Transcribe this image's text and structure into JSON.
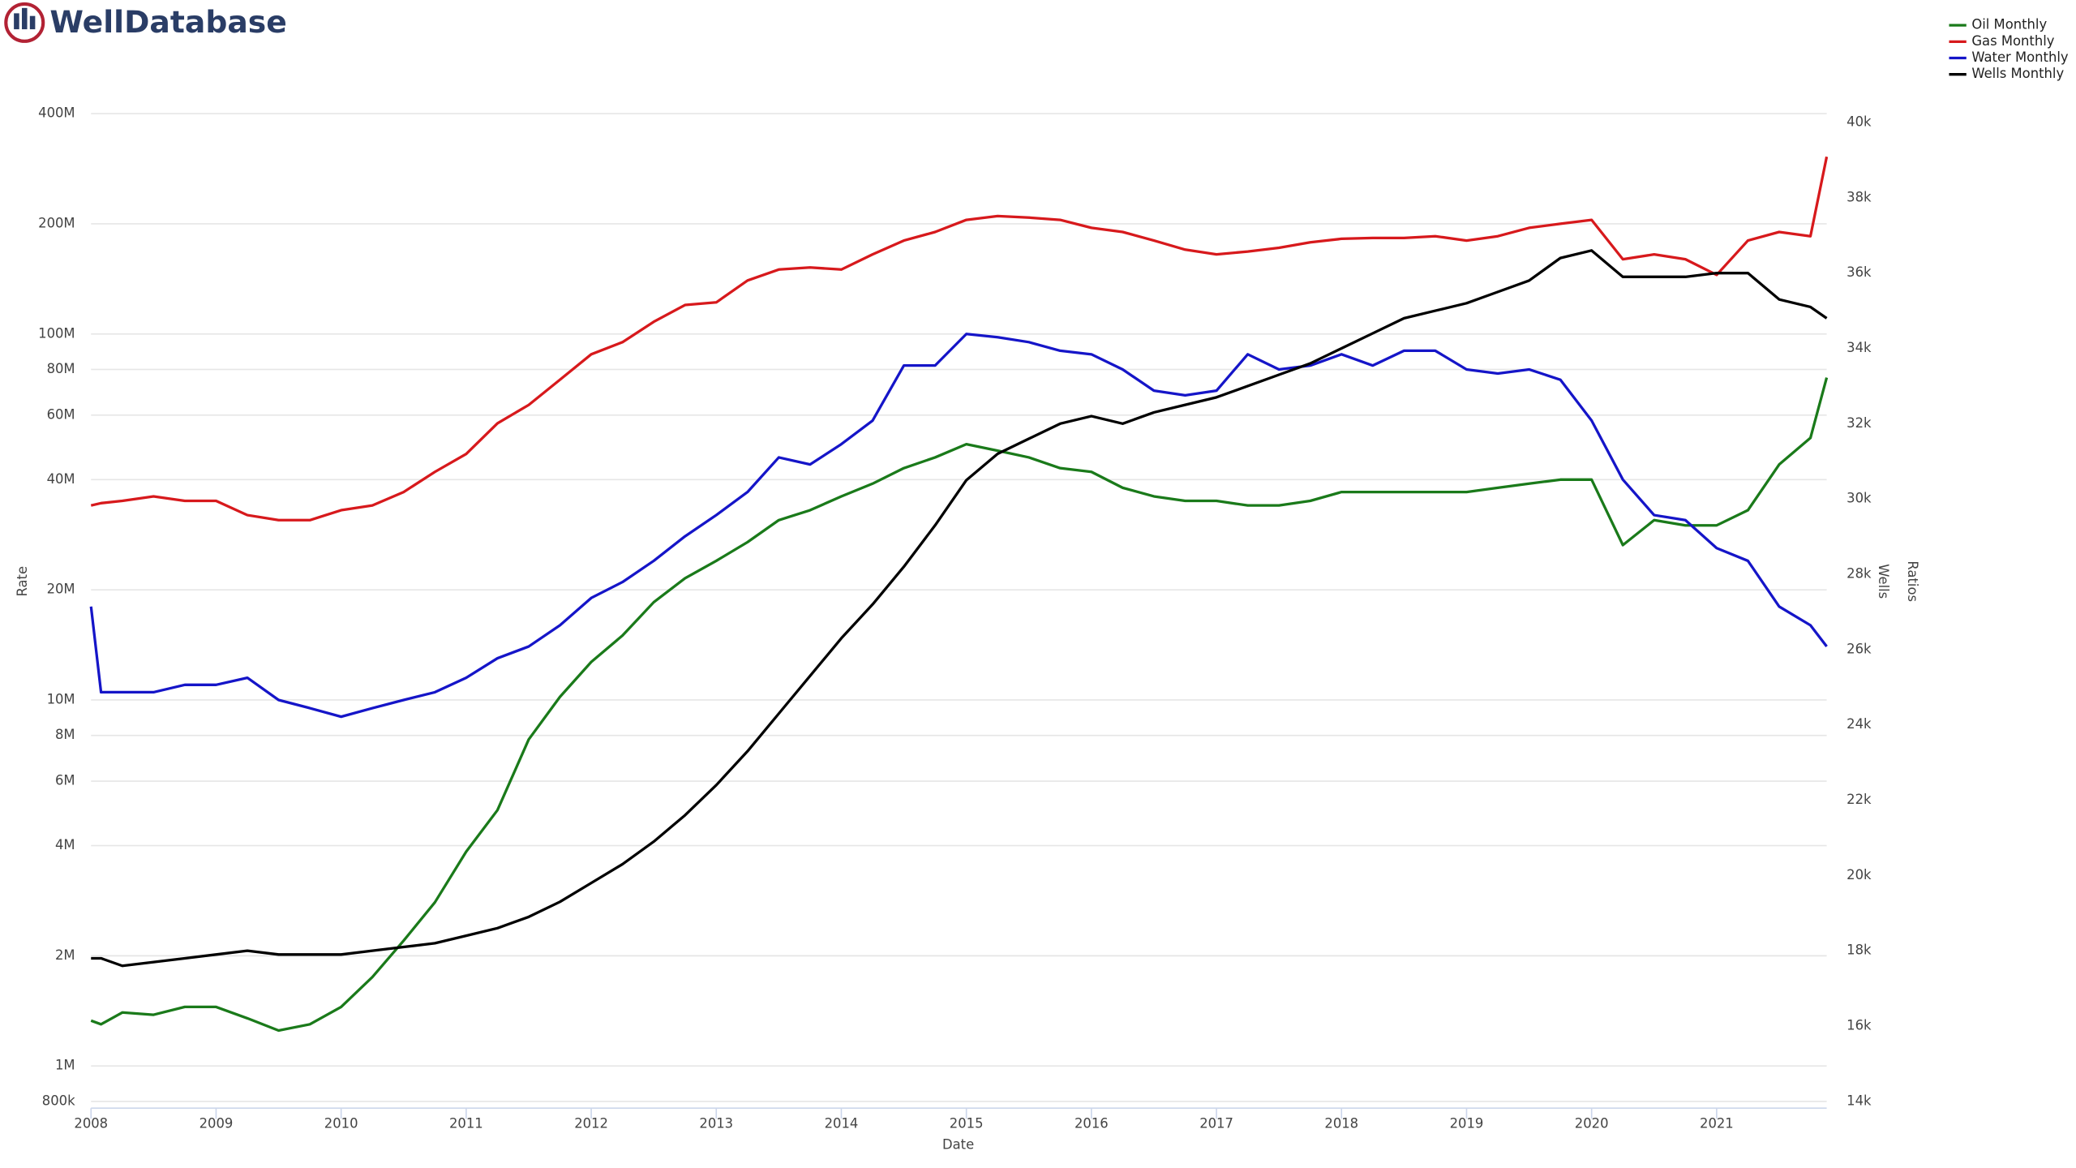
{
  "logo": "WellDatabase",
  "chart_data": {
    "type": "line",
    "x_label": "Date",
    "y_label": "Rate",
    "y2_label": "Wells",
    "y3_label": "Ratios",
    "x": [
      2008,
      2008.08,
      2008.25,
      2008.5,
      2008.75,
      2009,
      2009.25,
      2009.5,
      2009.75,
      2010,
      2010.25,
      2010.5,
      2010.75,
      2011,
      2011.25,
      2011.5,
      2011.75,
      2012,
      2012.25,
      2012.5,
      2012.75,
      2013,
      2013.25,
      2013.5,
      2013.75,
      2014,
      2014.25,
      2014.5,
      2014.75,
      2015,
      2015.25,
      2015.5,
      2015.75,
      2016,
      2016.25,
      2016.5,
      2016.75,
      2017,
      2017.25,
      2017.5,
      2017.75,
      2018,
      2018.25,
      2018.5,
      2018.75,
      2019,
      2019.25,
      2019.5,
      2019.75,
      2020,
      2020.25,
      2020.5,
      2020.75,
      2021,
      2021.25,
      2021.5,
      2021.75,
      2021.88
    ],
    "xlim": [
      2008,
      2021.88
    ],
    "xticks": [
      2008,
      2009,
      2010,
      2011,
      2012,
      2013,
      2014,
      2015,
      2016,
      2017,
      2018,
      2019,
      2020,
      2021
    ],
    "log_y": true,
    "ylim": [
      767000,
      585000000
    ],
    "yticks": [
      {
        "value": 800000,
        "label": "800k"
      },
      {
        "value": 1000000,
        "label": "1M"
      },
      {
        "value": 2000000,
        "label": "2M"
      },
      {
        "value": 4000000,
        "label": "4M"
      },
      {
        "value": 6000000,
        "label": "6M"
      },
      {
        "value": 8000000,
        "label": "8M"
      },
      {
        "value": 10000000,
        "label": "10M"
      },
      {
        "value": 20000000,
        "label": "20M"
      },
      {
        "value": 40000000,
        "label": "40M"
      },
      {
        "value": 60000000,
        "label": "60M"
      },
      {
        "value": 80000000,
        "label": "80M"
      },
      {
        "value": 100000000,
        "label": "100M"
      },
      {
        "value": 200000000,
        "label": "200M"
      },
      {
        "value": 400000000,
        "label": "400M"
      }
    ],
    "y2lim": [
      13820,
      41840
    ],
    "y2ticks": [
      {
        "value": 14000,
        "label": "14k"
      },
      {
        "value": 16000,
        "label": "16k"
      },
      {
        "value": 18000,
        "label": "18k"
      },
      {
        "value": 20000,
        "label": "20k"
      },
      {
        "value": 22000,
        "label": "22k"
      },
      {
        "value": 24000,
        "label": "24k"
      },
      {
        "value": 26000,
        "label": "26k"
      },
      {
        "value": 28000,
        "label": "28k"
      },
      {
        "value": 30000,
        "label": "30k"
      },
      {
        "value": 32000,
        "label": "32k"
      },
      {
        "value": 34000,
        "label": "34k"
      },
      {
        "value": 36000,
        "label": "36k"
      },
      {
        "value": 38000,
        "label": "38k"
      },
      {
        "value": 40000,
        "label": "40k"
      }
    ],
    "grid": true,
    "legend": "top-right",
    "series": [
      {
        "name": "Oil Monthly",
        "color": "#1a7a1a",
        "values": [
          1330000.0,
          1300000.0,
          1400000.0,
          1380000.0,
          1450000.0,
          1450000.0,
          1350000.0,
          1250000.0,
          1300000.0,
          1450000.0,
          1750000.0,
          2200000.0,
          2800000.0,
          3850000.0,
          5000000.0,
          7800000.0,
          10200000.0,
          12700000.0,
          15000000.0,
          18500000.0,
          21500000.0,
          24000000.0,
          27000000.0,
          31000000.0,
          33000000.0,
          36000000.0,
          39000000.0,
          43000000.0,
          46000000.0,
          50000000.0,
          48000000.0,
          46000000.0,
          43000000.0,
          42000000.0,
          38000000.0,
          36000000.0,
          35000000.0,
          35000000.0,
          34000000.0,
          34000000.0,
          35000000.0,
          37000000.0,
          37000000.0,
          37000000.0,
          37000000.0,
          37000000.0,
          38000000.0,
          39000000.0,
          40000000.0,
          40000000.0,
          26500000.0,
          31000000.0,
          30000000.0,
          30000000.0,
          33000000.0,
          44000000.0,
          52000000.0,
          76000000.0
        ]
      },
      {
        "name": "Gas Monthly",
        "color": "#d7191c",
        "values": [
          34000000.0,
          34500000.0,
          35000000.0,
          36000000.0,
          35000000.0,
          35000000.0,
          32000000.0,
          31000000.0,
          31000000.0,
          33000000.0,
          34000000.0,
          37000000.0,
          42000000.0,
          47000000.0,
          57000000.0,
          64000000.0,
          75000000.0,
          88000000.0,
          95000000.0,
          108000000.0,
          120000000.0,
          122000000.0,
          140000000.0,
          150000000.0,
          152000000.0,
          150000000.0,
          165000000.0,
          180000000.0,
          190000000.0,
          205000000.0,
          210000000.0,
          208000000.0,
          205000000.0,
          195000000.0,
          190000000.0,
          180000000.0,
          170000000.0,
          165000000.0,
          168000000.0,
          172000000.0,
          178000000.0,
          182000000.0,
          183000000.0,
          183000000.0,
          185000000.0,
          180000000.0,
          185000000.0,
          195000000.0,
          200000000.0,
          205000000.0,
          160000000.0,
          165000000.0,
          160000000.0,
          145000000.0,
          180000000.0,
          190000000.0,
          185000000.0,
          305000000.0
        ]
      },
      {
        "name": "Water Monthly",
        "color": "#1515c8",
        "values": [
          18000000.0,
          10500000.0,
          10500000.0,
          10500000.0,
          11000000.0,
          11000000.0,
          11500000.0,
          10000000.0,
          9500000.0,
          9000000.0,
          9500000.0,
          10000000.0,
          10500000.0,
          11500000.0,
          13000000.0,
          14000000.0,
          16000000.0,
          19000000.0,
          21000000.0,
          24000000.0,
          28000000.0,
          32000000.0,
          37000000.0,
          46000000.0,
          44000000.0,
          50000000.0,
          58000000.0,
          82000000.0,
          82000000.0,
          100000000.0,
          98000000.0,
          95000000.0,
          90000000.0,
          88000000.0,
          80000000.0,
          70000000.0,
          68000000.0,
          70000000.0,
          88000000.0,
          80000000.0,
          82000000.0,
          88000000.0,
          82000000.0,
          90000000.0,
          90000000.0,
          80000000.0,
          78000000.0,
          80000000.0,
          75000000.0,
          58000000.0,
          40000000.0,
          32000000.0,
          31000000.0,
          26000000.0,
          24000000.0,
          18000000.0,
          16000000.0,
          14000000.0
        ]
      },
      {
        "name": "Wells Monthly",
        "color": "#000000",
        "axis": "y2",
        "values": [
          17800,
          17800,
          17600,
          17700,
          17800,
          17900,
          18000,
          17900,
          17900,
          17900,
          18000,
          18100,
          18200,
          18400,
          18600,
          18900,
          19300,
          19800,
          20300,
          20900,
          21600,
          22400,
          23300,
          24300,
          25300,
          26300,
          27200,
          28200,
          29300,
          30500,
          31200,
          31600,
          32000,
          32200,
          32000,
          32300,
          32500,
          32700,
          33000,
          33300,
          33600,
          34000,
          34400,
          34800,
          35000,
          35200,
          35500,
          35800,
          36400,
          36600,
          35900,
          35900,
          35900,
          36000,
          36000,
          35300,
          35100,
          34800
        ]
      }
    ]
  }
}
